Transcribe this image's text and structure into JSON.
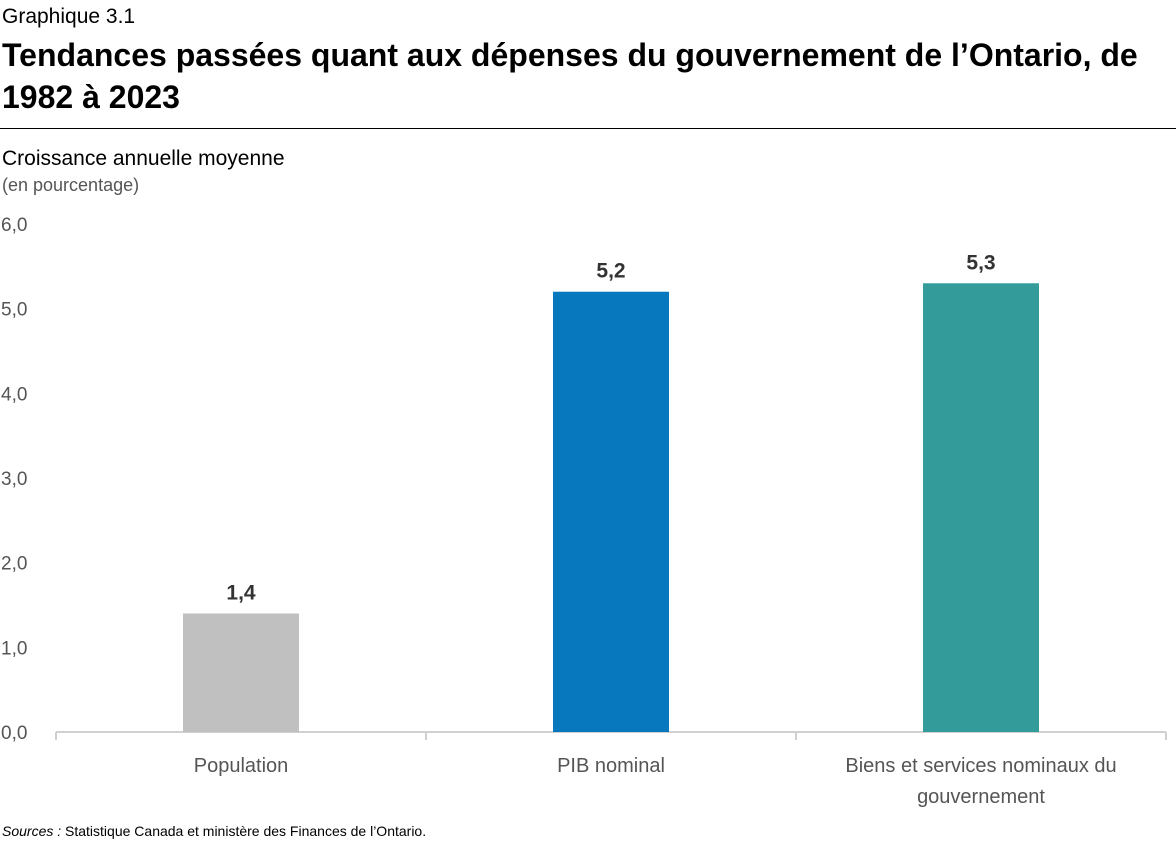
{
  "header": {
    "graph_label": "Graphique 3.1",
    "title": "Tendances passées quant aux dépenses du gouvernement de l’Ontario, de 1982 à 2023"
  },
  "axis": {
    "y_label": "Croissance annuelle moyenne",
    "y_unit": "(en pourcentage)"
  },
  "footer": {
    "source_prefix": "Sources :",
    "source_text": " Statistique Canada et ministère des Finances de l’Ontario."
  },
  "chart_data": {
    "type": "bar",
    "title": "Tendances passées quant aux dépenses du gouvernement de l’Ontario, de 1982 à 2023",
    "xlabel": "",
    "ylabel": "Croissance annuelle moyenne (en pourcentage)",
    "ylim": [
      0,
      6
    ],
    "yticks": [
      0,
      1,
      2,
      3,
      4,
      5,
      6
    ],
    "ytick_labels": [
      "0,0",
      "1,0",
      "2,0",
      "3,0",
      "4,0",
      "5,0",
      "6,0"
    ],
    "grid": false,
    "categories": [
      [
        "Population"
      ],
      [
        "PIB nominal"
      ],
      [
        "Biens et services nominaux du",
        "gouvernement"
      ]
    ],
    "values": [
      1.4,
      5.2,
      5.3
    ],
    "value_labels": [
      "1,4",
      "5,2",
      "5,3"
    ],
    "colors": [
      "#c0c0c0",
      "#0878be",
      "#349b9b"
    ],
    "axis_color": "#d0d0d0",
    "tick_text_color": "#555555",
    "value_text_color": "#333333"
  }
}
